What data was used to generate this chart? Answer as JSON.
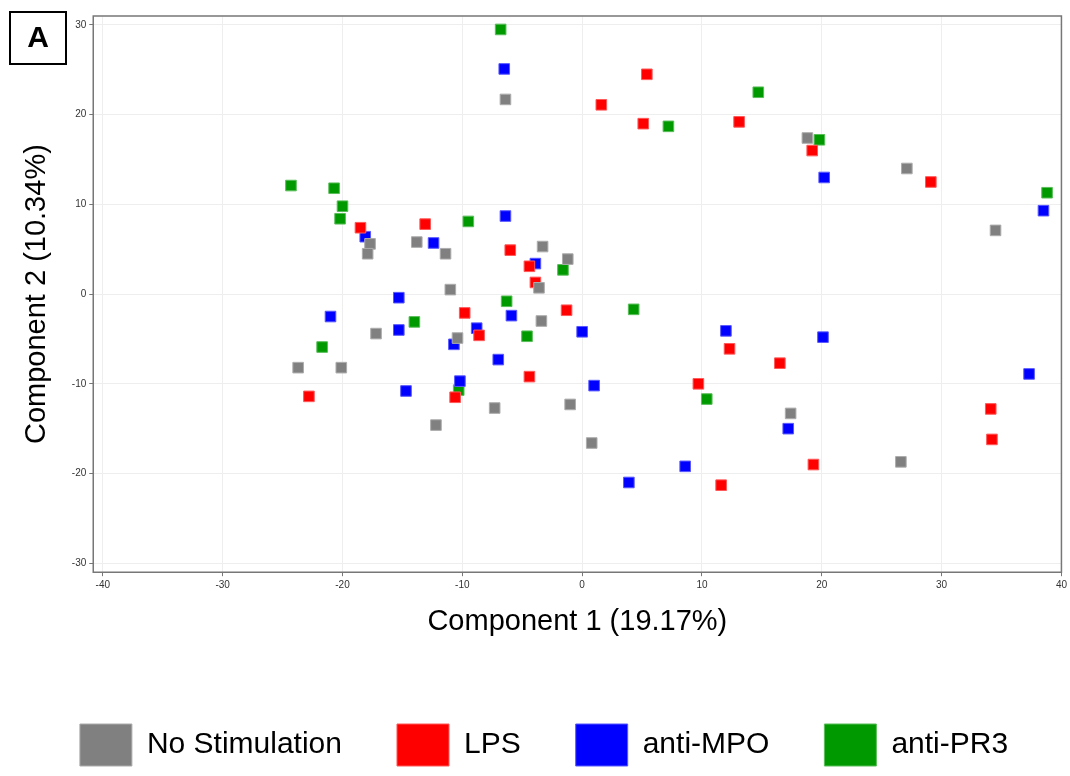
{
  "chart_data": {
    "type": "scatter",
    "xlabel": "Component 1 (19.17%)",
    "ylabel": "Component 2 (10.34%)",
    "annotations": [
      "A"
    ],
    "xlim": [
      -40.8,
      40
    ],
    "ylim": [
      -31,
      31
    ],
    "xticks": [
      -40,
      -30,
      -20,
      -10,
      0,
      10,
      20,
      30,
      40
    ],
    "yticks": [
      -30,
      -20,
      -10,
      0,
      10,
      20,
      30
    ],
    "grid": true,
    "legend": "bottom",
    "marker": "square",
    "series": [
      {
        "name": "No Stimulation",
        "color": "#808080",
        "x": [
          -6.4,
          18.8,
          27.1,
          34.5,
          -17.7,
          -17.9,
          -13.8,
          -11.4,
          -3.3,
          -1.2,
          -3.6,
          -11.0,
          -3.4,
          -17.2,
          -10.4,
          -23.7,
          -20.1,
          -7.3,
          -1.0,
          -12.2,
          0.8,
          17.4,
          26.6
        ],
        "values": [
          21.7,
          17.4,
          14.0,
          7.1,
          5.6,
          4.5,
          5.8,
          4.5,
          5.3,
          3.9,
          0.7,
          0.5,
          -3.0,
          -4.4,
          -4.9,
          -8.2,
          -8.2,
          -12.7,
          -12.3,
          -14.6,
          -16.6,
          -13.3,
          -18.7
        ]
      },
      {
        "name": "LPS",
        "color": "#ff0000",
        "x": [
          5.4,
          1.6,
          5.1,
          13.1,
          19.2,
          29.1,
          -18.5,
          -13.1,
          -6.0,
          -4.4,
          -3.9,
          -9.8,
          -1.3,
          -8.6,
          -4.4,
          -10.6,
          -22.8,
          12.3,
          16.5,
          9.7,
          34.1,
          34.2,
          19.3,
          11.6
        ],
        "values": [
          24.5,
          21.1,
          19.0,
          19.2,
          16.0,
          12.5,
          7.4,
          7.8,
          4.9,
          3.1,
          1.3,
          -2.1,
          -1.8,
          -4.6,
          -9.2,
          -11.5,
          -11.4,
          -6.1,
          -7.7,
          -10.0,
          -12.8,
          -16.2,
          -19.0,
          -21.3
        ]
      },
      {
        "name": "anti-MPO",
        "color": "#0000ff",
        "x": [
          -6.5,
          20.2,
          38.5,
          -18.1,
          -12.4,
          -6.4,
          -3.9,
          -15.3,
          -21.0,
          -5.9,
          -15.3,
          -8.8,
          -10.7,
          0.0,
          -7.0,
          -10.2,
          -14.7,
          1.0,
          12.0,
          20.1,
          37.3,
          17.2,
          8.6,
          3.9
        ],
        "values": [
          25.1,
          13.0,
          9.3,
          6.4,
          5.7,
          8.7,
          3.4,
          -0.4,
          -2.5,
          -2.4,
          -4.0,
          -3.8,
          -5.6,
          -4.2,
          -7.3,
          -9.7,
          -10.8,
          -10.2,
          -4.1,
          -4.8,
          -8.9,
          -15.0,
          -19.2,
          -21.0
        ]
      },
      {
        "name": "anti-PR3",
        "color": "#009900",
        "x": [
          -6.8,
          14.7,
          7.2,
          19.8,
          38.8,
          -24.3,
          -20.7,
          -20.0,
          -20.2,
          -9.5,
          -1.6,
          -6.3,
          4.3,
          -14.0,
          -4.6,
          -21.7,
          -10.3,
          10.4
        ],
        "values": [
          29.5,
          22.5,
          18.7,
          17.2,
          11.3,
          12.1,
          11.8,
          9.8,
          8.4,
          8.1,
          2.7,
          -0.8,
          -1.7,
          -3.1,
          -4.7,
          -5.9,
          -10.7,
          -11.7
        ]
      }
    ]
  }
}
